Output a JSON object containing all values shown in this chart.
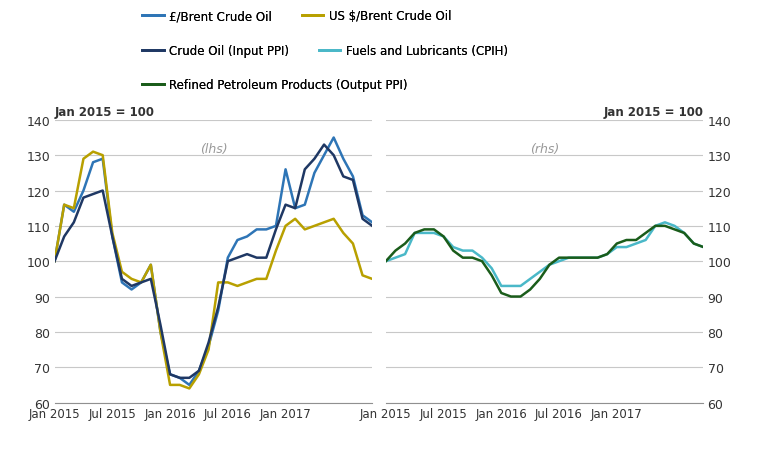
{
  "ylim": [
    60,
    140
  ],
  "yticks": [
    60,
    70,
    80,
    90,
    100,
    110,
    120,
    130,
    140
  ],
  "lhs_label": "Jan 2015 = 100",
  "rhs_label": "Jan 2015 = 100",
  "lhs_annotation": "(lhs)",
  "rhs_annotation": "(rhs)",
  "colors": {
    "gbp_brent": "#2e75b6",
    "usd_brent": "#b8a000",
    "crude_input_ppi": "#1f3864",
    "fuels_cpih": "#4ab8c8",
    "refined_output_ppi": "#1a5c1a"
  },
  "legend": [
    {
      "label": "£/Brent Crude Oil",
      "color": "#2e75b6"
    },
    {
      "label": "US $/Brent Crude Oil",
      "color": "#b8a000"
    },
    {
      "label": "Crude Oil (Input PPI)",
      "color": "#1f3864"
    },
    {
      "label": "Fuels and Lubricants (CPIH)",
      "color": "#4ab8c8"
    },
    {
      "label": "Refined Petroleum Products (Output PPI)",
      "color": "#1a5c1a"
    }
  ],
  "gbp_brent": [
    100,
    116,
    114,
    120,
    128,
    129,
    107,
    94,
    92,
    94,
    99,
    80,
    68,
    67,
    65,
    69,
    76,
    86,
    101,
    106,
    107,
    109,
    109,
    110,
    126,
    115,
    116,
    125,
    130,
    135,
    129,
    124,
    113,
    111
  ],
  "usd_brent": [
    100,
    116,
    115,
    129,
    131,
    130,
    108,
    97,
    95,
    94,
    99,
    80,
    65,
    65,
    64,
    68,
    75,
    94,
    94,
    93,
    94,
    95,
    95,
    103,
    110,
    112,
    109,
    110,
    111,
    112,
    108,
    105,
    96,
    95
  ],
  "crude_input_ppi": [
    100,
    107,
    111,
    118,
    119,
    120,
    107,
    95,
    93,
    94,
    95,
    82,
    68,
    67,
    67,
    69,
    77,
    87,
    100,
    101,
    102,
    101,
    101,
    109,
    116,
    115,
    126,
    129,
    133,
    130,
    124,
    123,
    112,
    110
  ],
  "rhs_fuels_cpih": [
    100,
    101,
    102,
    108,
    108,
    108,
    107,
    104,
    103,
    103,
    101,
    98,
    93,
    93,
    93,
    95,
    97,
    99,
    100,
    101,
    101,
    101,
    101,
    102,
    104,
    104,
    105,
    106,
    110,
    111,
    110,
    108,
    105,
    104
  ],
  "rhs_refined_ppi": [
    100,
    103,
    105,
    108,
    109,
    109,
    107,
    103,
    101,
    101,
    100,
    96,
    91,
    90,
    90,
    92,
    95,
    99,
    101,
    101,
    101,
    101,
    101,
    102,
    105,
    106,
    106,
    108,
    110,
    110,
    109,
    108,
    105,
    104
  ],
  "xticks_lhs": [
    "Jan 2015",
    "Jul 2015",
    "Jan 2016",
    "Jul 2016",
    "Jan 2017"
  ],
  "xticks_rhs": [
    "Jan 2015",
    "Jul 2015",
    "Jan 2016",
    "Jul 2016",
    "Jan 2017"
  ],
  "n_points": 34,
  "background_color": "#ffffff",
  "grid_color": "#c8c8c8",
  "separator_color": "#b0b0b0"
}
